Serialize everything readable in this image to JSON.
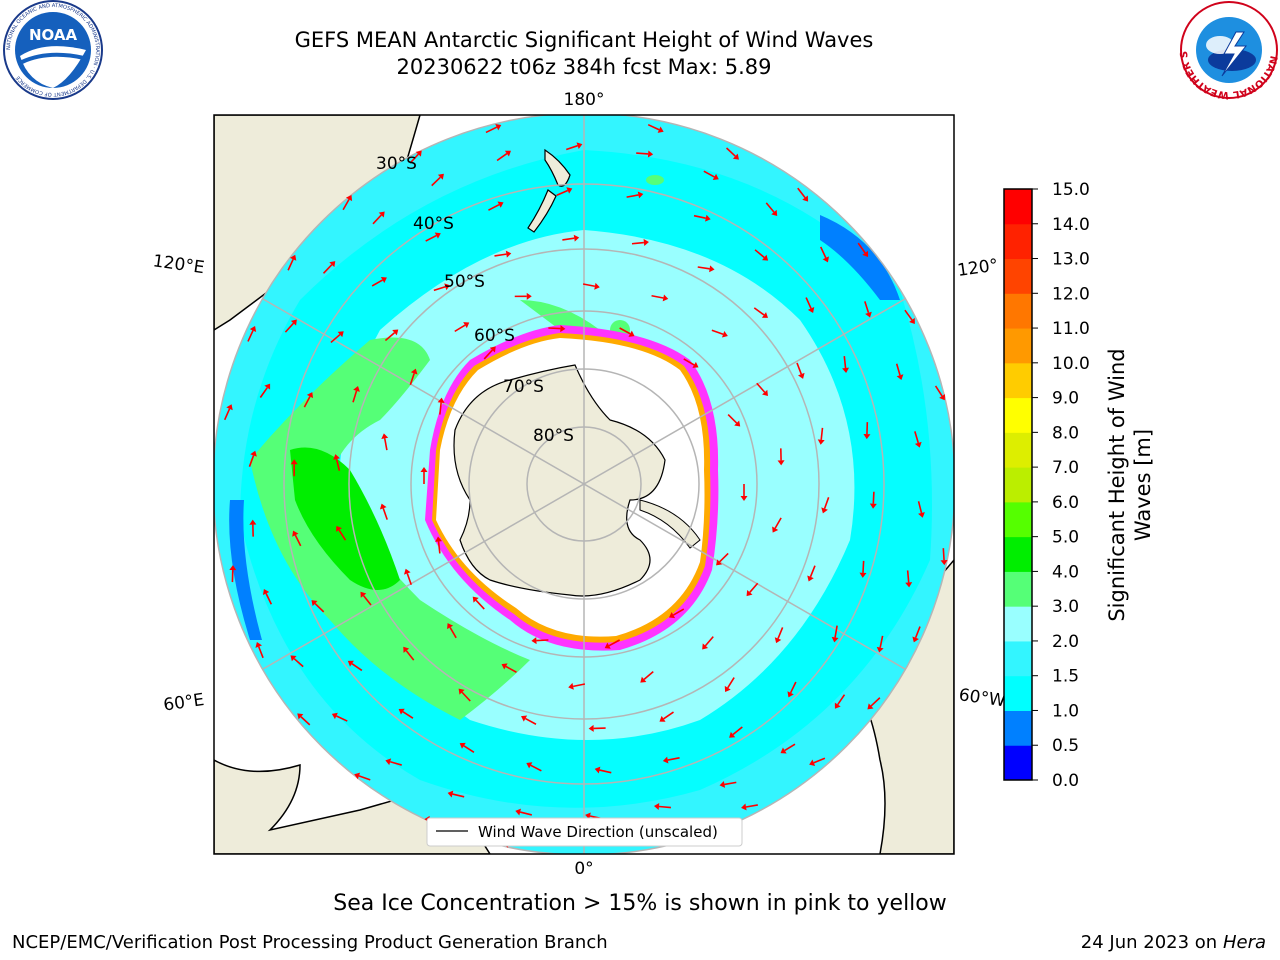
{
  "header": {
    "title_line1": "GEFS MEAN Antarctic Significant Height of Wind Waves",
    "title_line2": "20230622 t06z 384h fcst   Max: 5.89"
  },
  "logos": {
    "left": "NOAA",
    "left_ring": "NATIONAL OCEANIC AND ATMOSPHERIC ADMINISTRATION · U.S. DEPARTMENT OF COMMERCE",
    "right_ring": "NATIONAL WEATHER SERVICE"
  },
  "map": {
    "lon_labels": {
      "top": "180°",
      "bottom": "0°",
      "upper_left": "120°E",
      "lower_left": "60°E",
      "upper_right": "120°",
      "lower_right": "60°W"
    },
    "lat_labels": [
      "30°S",
      "40°S",
      "50°S",
      "60°S",
      "70°S",
      "80°S"
    ],
    "legend": "Wind Wave Direction (unscaled)",
    "arrow_color": "#ff0000",
    "land_color": "#eeecda",
    "ice_edge_colors": [
      "#ff33ff",
      "#ffaa00",
      "#ffff00"
    ]
  },
  "colorbar": {
    "label": "Significant Height of Wind Waves [m]",
    "ticks": [
      "0.0",
      "0.5",
      "1.0",
      "1.5",
      "2.0",
      "3.0",
      "4.0",
      "5.0",
      "6.0",
      "7.0",
      "8.0",
      "9.0",
      "10.0",
      "11.0",
      "12.0",
      "13.0",
      "14.0",
      "15.0"
    ],
    "colors": [
      "#0000ff",
      "#0080ff",
      "#00ffff",
      "#33f5ff",
      "#99ffff",
      "#55ff77",
      "#00ee00",
      "#55ff00",
      "#bbee00",
      "#ddee00",
      "#ffff00",
      "#ffcc00",
      "#ff9900",
      "#ff7700",
      "#ff4400",
      "#ff2200",
      "#ff0000"
    ]
  },
  "footer": {
    "caption": "Sea Ice Concentration > 15% is shown in pink to yellow",
    "credit": "NCEP/EMC/Verification Post Processing Product Generation Branch",
    "date": "24 Jun 2023 on",
    "machine": "Hera"
  }
}
